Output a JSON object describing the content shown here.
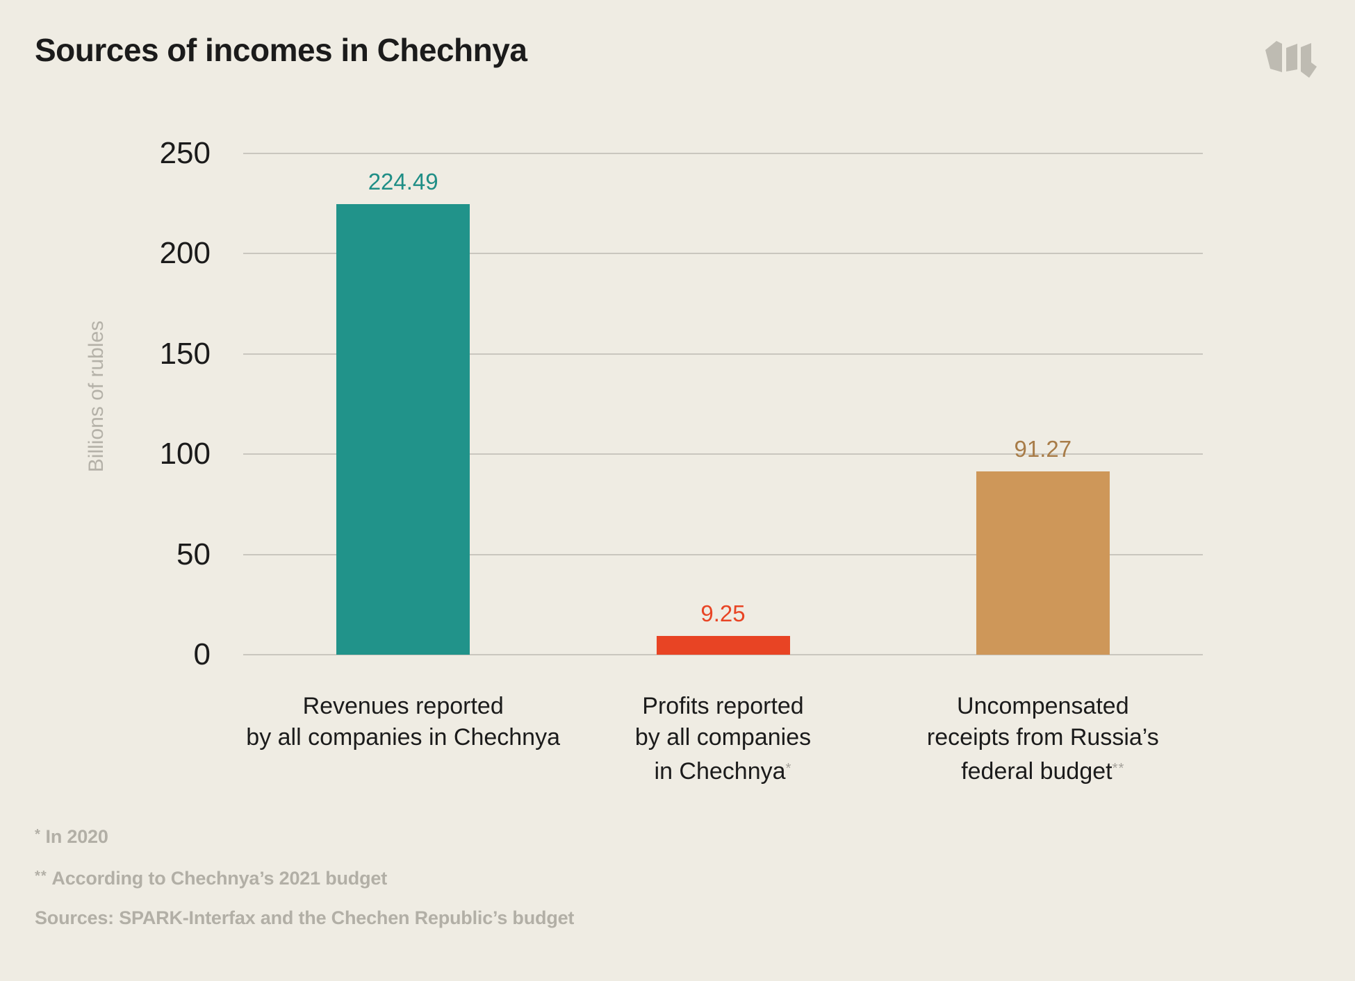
{
  "page": {
    "title": "Sources of incomes in Chechnya",
    "logo_icon": "meduza-m-logo"
  },
  "chart_data": {
    "type": "bar",
    "title": "Sources of incomes in Chechnya",
    "xlabel": "",
    "ylabel": "Billions of rubles",
    "ylim": [
      0,
      250
    ],
    "yticks": [
      0,
      50,
      100,
      150,
      200,
      250
    ],
    "grid": "horizontal",
    "legend": "none",
    "categories": [
      "Revenues reported by all companies in Chechnya",
      "Profits reported by all companies in Chechnya*",
      "Uncompensated receipts from Russia’s federal budget**"
    ],
    "values": [
      224.49,
      9.25,
      91.27
    ],
    "bars": [
      {
        "id": "revenues",
        "lines": [
          "Revenues reported",
          "by all companies in Chechnya"
        ],
        "mark": "",
        "value": 224.49,
        "label": "224.49",
        "bar_color": "#21938A",
        "label_color": "#1F8E86"
      },
      {
        "id": "profits",
        "lines": [
          "Profits reported",
          "by all companies",
          "in Chechnya"
        ],
        "mark": "*",
        "value": 9.25,
        "label": "9.25",
        "bar_color": "#E84424",
        "label_color": "#E84424"
      },
      {
        "id": "federal-receipts",
        "lines": [
          "Uncompensated",
          "receipts from Russia’s",
          "federal budget"
        ],
        "mark": "**",
        "value": 91.27,
        "label": "91.27",
        "bar_color": "#CE9759",
        "label_color": "#A87C48"
      }
    ],
    "footnotes": [
      {
        "mark": "*",
        "text": "In 2020"
      },
      {
        "mark": "**",
        "text": "According to Chechnya’s 2021 budget"
      },
      {
        "mark": "",
        "text": "Sources: SPARK-Interfax and the Chechen Republic’s budget"
      }
    ],
    "colors": {
      "background": "#EFECE3",
      "gridline": "#C9C6BE",
      "text_dark": "#1B1B1B",
      "text_gray": "#B2AFA6",
      "logo_gray": "#BEBBB2"
    }
  }
}
